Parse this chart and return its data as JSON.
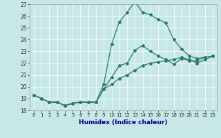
{
  "xlabel": "Humidex (Indice chaleur)",
  "bg_color": "#c8e8e8",
  "line_color": "#2d7a6a",
  "grid_color": "#ffffff",
  "xlim": [
    -0.5,
    23.5
  ],
  "ylim": [
    18,
    27
  ],
  "yticks": [
    18,
    19,
    20,
    21,
    22,
    23,
    24,
    25,
    26,
    27
  ],
  "xticks": [
    0,
    1,
    2,
    3,
    4,
    5,
    6,
    7,
    8,
    9,
    10,
    11,
    12,
    13,
    14,
    15,
    16,
    17,
    18,
    19,
    20,
    21,
    22,
    23
  ],
  "line1_x": [
    0,
    1,
    2,
    3,
    4,
    5,
    6,
    7,
    8,
    9,
    10,
    11,
    12,
    13,
    14,
    15,
    16,
    17,
    18,
    19,
    20,
    21,
    22,
    23
  ],
  "line1_y": [
    19.3,
    19.0,
    18.7,
    18.7,
    18.4,
    18.6,
    18.7,
    18.7,
    18.7,
    20.2,
    23.6,
    25.5,
    26.3,
    27.2,
    26.3,
    26.1,
    25.7,
    25.4,
    24.0,
    23.2,
    22.6,
    22.4,
    22.5,
    22.6
  ],
  "line2_x": [
    0,
    1,
    2,
    3,
    4,
    5,
    6,
    7,
    8,
    9,
    10,
    11,
    12,
    13,
    14,
    15,
    16,
    17,
    18,
    19,
    20,
    21,
    22,
    23
  ],
  "line2_y": [
    19.3,
    19.0,
    18.7,
    18.7,
    18.4,
    18.6,
    18.7,
    18.7,
    18.7,
    19.8,
    20.8,
    21.8,
    22.0,
    23.1,
    23.5,
    23.0,
    22.6,
    22.3,
    21.9,
    22.4,
    22.2,
    22.2,
    22.5,
    22.6
  ],
  "line3_x": [
    0,
    1,
    2,
    3,
    4,
    5,
    6,
    7,
    8,
    9,
    10,
    11,
    12,
    13,
    14,
    15,
    16,
    17,
    18,
    19,
    20,
    21,
    22,
    23
  ],
  "line3_y": [
    19.3,
    19.0,
    18.7,
    18.7,
    18.4,
    18.6,
    18.7,
    18.7,
    18.7,
    19.8,
    20.2,
    20.7,
    21.0,
    21.4,
    21.8,
    22.0,
    22.1,
    22.2,
    22.3,
    22.5,
    22.3,
    22.0,
    22.3,
    22.6
  ],
  "xlabel_fontsize": 6.5,
  "xlabel_color": "#00008b",
  "tick_fontsize": 5,
  "ytick_fontsize": 5.5,
  "marker": "D",
  "markersize": 2.0,
  "linewidth": 0.9
}
